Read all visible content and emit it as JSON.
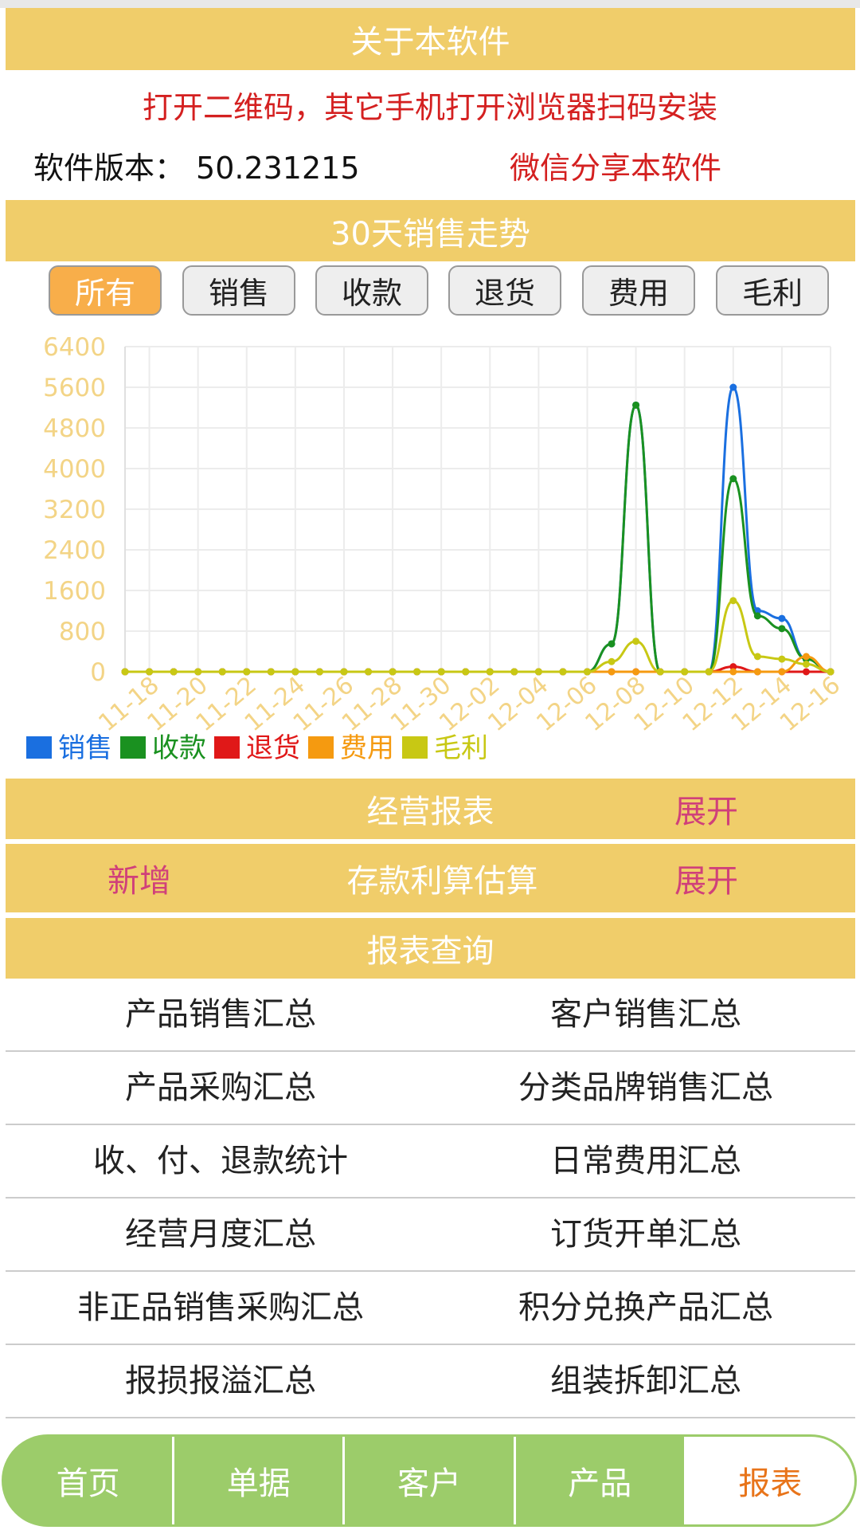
{
  "about": {
    "title": "关于本软件",
    "qr_note": "打开二维码，其它手机打开浏览器扫码安装",
    "version_label": "软件版本：",
    "version": "50.231215",
    "share": "微信分享本软件"
  },
  "chart_data": {
    "type": "line",
    "title": "30天销售走势",
    "filters": [
      "所有",
      "销售",
      "收款",
      "退货",
      "费用",
      "毛利"
    ],
    "active_filter": 0,
    "categories": [
      null,
      "11-18",
      null,
      "11-20",
      null,
      "11-22",
      null,
      "11-24",
      null,
      "11-26",
      null,
      "11-28",
      null,
      "11-30",
      null,
      "12-02",
      null,
      "12-04",
      null,
      "12-06",
      null,
      "12-08",
      null,
      "12-10",
      null,
      "12-12",
      null,
      "12-14",
      null,
      "12-16"
    ],
    "series": [
      {
        "name": "销售",
        "color": "#1a6fe0",
        "values": [
          0,
          0,
          0,
          0,
          0,
          0,
          0,
          0,
          0,
          0,
          0,
          0,
          0,
          0,
          0,
          0,
          0,
          0,
          0,
          0,
          550,
          5250,
          0,
          0,
          0,
          5600,
          1200,
          1050,
          250,
          0
        ]
      },
      {
        "name": "收款",
        "color": "#1a9120",
        "values": [
          0,
          0,
          0,
          0,
          0,
          0,
          0,
          0,
          0,
          0,
          0,
          0,
          0,
          0,
          0,
          0,
          0,
          0,
          0,
          0,
          550,
          5250,
          0,
          0,
          0,
          3800,
          1100,
          850,
          250,
          0
        ]
      },
      {
        "name": "退货",
        "color": "#e01818",
        "values": [
          0,
          0,
          0,
          0,
          0,
          0,
          0,
          0,
          0,
          0,
          0,
          0,
          0,
          0,
          0,
          0,
          0,
          0,
          0,
          0,
          0,
          0,
          0,
          0,
          0,
          100,
          0,
          0,
          0,
          0
        ]
      },
      {
        "name": "费用",
        "color": "#f59a10",
        "values": [
          0,
          0,
          0,
          0,
          0,
          0,
          0,
          0,
          0,
          0,
          0,
          0,
          0,
          0,
          0,
          0,
          0,
          0,
          0,
          0,
          0,
          0,
          0,
          0,
          0,
          0,
          0,
          0,
          300,
          0
        ]
      },
      {
        "name": "毛利",
        "color": "#c8c814",
        "values": [
          0,
          0,
          0,
          0,
          0,
          0,
          0,
          0,
          0,
          0,
          0,
          0,
          0,
          0,
          0,
          0,
          0,
          0,
          0,
          0,
          200,
          600,
          0,
          0,
          0,
          1400,
          300,
          250,
          150,
          0
        ]
      }
    ],
    "ylim": [
      0,
      6400
    ],
    "yticks": [
      0,
      800,
      1600,
      2400,
      3200,
      4000,
      4800,
      5600,
      6400
    ],
    "grid": true,
    "legend": "bottom-left"
  },
  "business_report": {
    "title": "经营报表",
    "toggle": "展开"
  },
  "deposit": {
    "add": "新增",
    "title": "存款利算估算",
    "toggle": "展开"
  },
  "report_query": {
    "title": "报表查询",
    "items": [
      [
        "产品销售汇总",
        "客户销售汇总"
      ],
      [
        "产品采购汇总",
        "分类品牌销售汇总"
      ],
      [
        "收、付、退款统计",
        "日常费用汇总"
      ],
      [
        "经营月度汇总",
        "订货开单汇总"
      ],
      [
        "非正品销售采购汇总",
        "积分兑换产品汇总"
      ],
      [
        "报损报溢汇总",
        "组装拆卸汇总"
      ]
    ]
  },
  "nav": {
    "tabs": [
      "首页",
      "单据",
      "客户",
      "产品",
      "报表"
    ],
    "active": 4
  }
}
